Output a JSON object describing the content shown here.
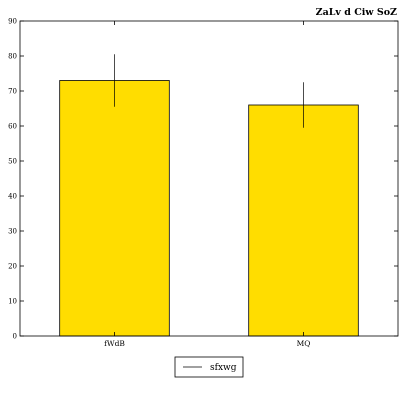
{
  "chart_data": {
    "type": "bar",
    "title": "ZaLv d Ciw SoZ",
    "categories": [
      "fWdB",
      "MQ"
    ],
    "series": [
      {
        "name": "sfxwg",
        "values": [
          73,
          66
        ],
        "errors": [
          7.5,
          6.5
        ]
      }
    ],
    "ylim": [
      0,
      90
    ],
    "yticks": [
      0,
      10,
      20,
      30,
      40,
      50,
      60,
      70,
      80,
      90
    ],
    "grid": false,
    "legend_position": "bottom-center",
    "colors": {
      "bar_fill": "#ffdd00",
      "bar_stroke": "#000000",
      "error_bar": "#000000"
    }
  }
}
